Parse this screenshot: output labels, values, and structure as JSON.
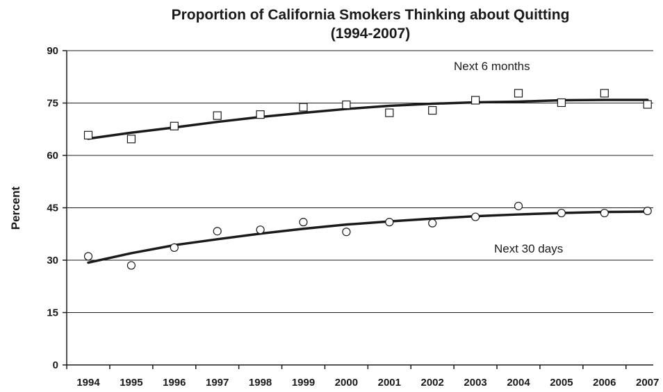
{
  "chart_data": {
    "type": "scatter",
    "title": "Proportion of California  Smokers Thinking about Quitting",
    "subtitle": "(1994-2007)",
    "ylabel": "Percent",
    "xlabel": "",
    "ylim": [
      0,
      90
    ],
    "yticks": [
      0,
      15,
      30,
      45,
      60,
      75,
      90
    ],
    "x": [
      1994,
      1995,
      1996,
      1997,
      1998,
      1999,
      2000,
      2001,
      2002,
      2003,
      2004,
      2005,
      2006,
      2007
    ],
    "x_tick_labels": [
      "1994",
      "1995",
      "1996",
      "1997",
      "1998",
      "1999",
      "2000",
      "2001",
      "2002",
      "2003",
      "2004",
      "2005",
      "2006",
      "2007"
    ],
    "grid": "horizontal",
    "legend": "none",
    "series": [
      {
        "name": "Next 6 months",
        "marker": "square",
        "values": [
          65.8,
          64.7,
          68.4,
          71.4,
          71.7,
          73.8,
          74.5,
          72.2,
          72.9,
          75.8,
          77.8,
          75.1,
          77.8,
          74.6
        ],
        "trend": [
          64.8,
          66.5,
          68.0,
          69.6,
          71.0,
          72.2,
          73.3,
          74.2,
          74.8,
          75.2,
          75.4,
          75.8,
          75.9,
          75.9
        ]
      },
      {
        "name": "Next 30 days",
        "marker": "circle",
        "values": [
          31.1,
          28.5,
          33.6,
          38.3,
          38.7,
          40.9,
          38.1,
          40.9,
          40.6,
          42.4,
          45.5,
          43.5,
          43.5,
          44.1
        ],
        "trend": [
          29.3,
          32.0,
          34.3,
          36.0,
          37.6,
          39.0,
          40.2,
          41.1,
          41.9,
          42.6,
          43.1,
          43.5,
          43.8,
          43.9
        ]
      }
    ],
    "colors": {
      "line": "#1a1a1a",
      "marker_stroke": "#1a1a1a",
      "grid": "#1a1a1a"
    }
  }
}
